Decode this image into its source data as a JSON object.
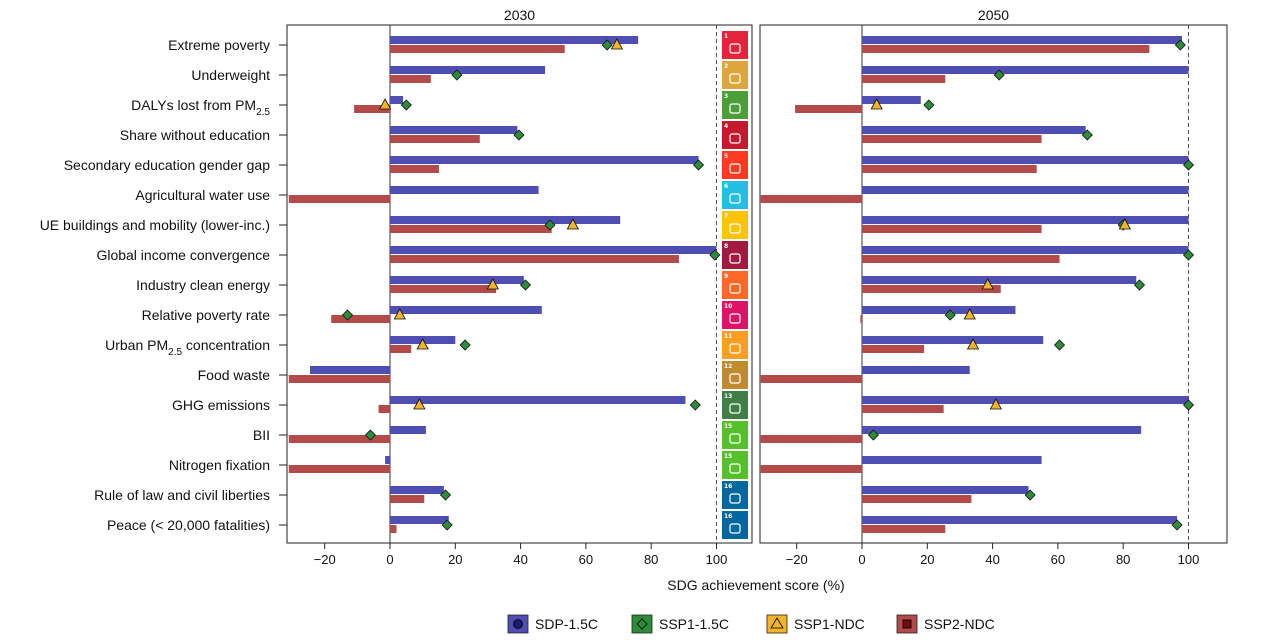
{
  "chart_data": [
    {
      "type": "bar",
      "title": "2030",
      "xlabel": "SDG achievement score (%)",
      "xlim": [
        -31,
        110
      ],
      "xticks": [
        -20,
        0,
        20,
        40,
        60,
        80,
        100
      ],
      "tick_labels": [
        "−20",
        "0",
        "20",
        "40",
        "60",
        "80",
        "100"
      ],
      "categories": [
        "Extreme poverty",
        "Underweight",
        "DALYs lost from PM2.5",
        "Share without education",
        "Secondary education gender gap",
        "Agricultural water use",
        "UE buildings and mobility (lower-inc.)",
        "Global income convergence",
        "Industry clean energy",
        "Relative poverty rate",
        "Urban PM2.5 concentration",
        "Food waste",
        "GHG emissions",
        "BII",
        "Nitrogen fixation",
        "Rule of law and civil liberties",
        "Peace (< 20,000 fatalities)"
      ],
      "series": [
        {
          "name": "SDP-1.5C",
          "kind": "bar",
          "color": "#4f4fb3",
          "values": [
            76,
            47.5,
            4,
            39,
            94.5,
            45.5,
            70.5,
            100,
            41,
            46.5,
            20,
            -24.5,
            90.5,
            11,
            -1.5,
            16.5,
            18
          ]
        },
        {
          "name": "SSP2-NDC",
          "kind": "bar",
          "color": "#b44b4b",
          "values": [
            53.5,
            12.5,
            -11,
            27.5,
            15,
            -31,
            49.5,
            88.5,
            32.5,
            -18,
            6.5,
            -31,
            -3.5,
            -31,
            -31,
            10.5,
            2
          ]
        },
        {
          "name": "SSP1-1.5C",
          "kind": "point",
          "color": "#2e8b3a",
          "values": [
            66.5,
            20.5,
            5,
            39.5,
            94.5,
            null,
            49,
            99.5,
            41.5,
            -13,
            23,
            null,
            93.5,
            -6,
            null,
            17,
            17.5
          ]
        },
        {
          "name": "SSP1-NDC",
          "kind": "point",
          "color": "#f0b429",
          "values": [
            69.5,
            null,
            -1.5,
            null,
            null,
            null,
            56,
            null,
            31.5,
            3,
            10,
            null,
            9,
            null,
            null,
            null,
            null
          ]
        }
      ]
    },
    {
      "type": "bar",
      "title": "2050",
      "xlabel": "SDG achievement score (%)",
      "xlim": [
        -31,
        110
      ],
      "xticks": [
        -20,
        0,
        20,
        40,
        60,
        80,
        100
      ],
      "tick_labels": [
        "−20",
        "0",
        "20",
        "40",
        "60",
        "80",
        "100"
      ],
      "categories": [
        "Extreme poverty",
        "Underweight",
        "DALYs lost from PM2.5",
        "Share without education",
        "Secondary education gender gap",
        "Agricultural water use",
        "UE buildings and mobility (lower-inc.)",
        "Global income convergence",
        "Industry clean energy",
        "Relative poverty rate",
        "Urban PM2.5 concentration",
        "Food waste",
        "GHG emissions",
        "BII",
        "Nitrogen fixation",
        "Rule of law and civil liberties",
        "Peace (< 20,000 fatalities)"
      ],
      "series": [
        {
          "name": "SDP-1.5C",
          "kind": "bar",
          "color": "#4f4fb3",
          "values": [
            98,
            100,
            18,
            68.5,
            100,
            100,
            100,
            100,
            84,
            47,
            55.5,
            33,
            100,
            85.5,
            55,
            51,
            96.5
          ]
        },
        {
          "name": "SSP2-NDC",
          "kind": "bar",
          "color": "#b44b4b",
          "values": [
            88,
            25.5,
            -20.5,
            55,
            53.5,
            -31,
            55,
            60.5,
            42.5,
            -0.5,
            19,
            -31,
            25,
            -31,
            -31,
            33.5,
            25.5
          ]
        },
        {
          "name": "SSP1-1.5C",
          "kind": "point",
          "color": "#2e8b3a",
          "values": [
            97.5,
            42,
            20.5,
            69,
            100,
            null,
            80,
            100,
            85,
            27,
            60.5,
            null,
            100,
            3.5,
            null,
            51.5,
            96.5
          ]
        },
        {
          "name": "SSP1-NDC",
          "kind": "point",
          "color": "#f0b429",
          "values": [
            null,
            null,
            4.5,
            null,
            null,
            null,
            80.5,
            null,
            38.5,
            33,
            34,
            null,
            41,
            null,
            null,
            null,
            null
          ]
        }
      ]
    }
  ],
  "row_labels": [
    {
      "text": "Extreme poverty"
    },
    {
      "text": "Underweight"
    },
    {
      "text": "DALYs lost from PM",
      "sub": "2.5"
    },
    {
      "text": "Share without education"
    },
    {
      "text": "Secondary education gender gap"
    },
    {
      "text": "Agricultural water use"
    },
    {
      "text": "UE buildings and mobility (lower-inc.)"
    },
    {
      "text": "Global income convergence"
    },
    {
      "text": "Industry clean energy"
    },
    {
      "text": "Relative poverty rate"
    },
    {
      "text": "Urban PM",
      "sub": "2.5",
      "suffix": " concentration"
    },
    {
      "text": "Food waste"
    },
    {
      "text": "GHG emissions"
    },
    {
      "text": "BII"
    },
    {
      "text": "Nitrogen fixation"
    },
    {
      "text": "Rule of law and civil liberties"
    },
    {
      "text": "Peace (< 20,000 fatalities)"
    }
  ],
  "sdg_icons": [
    {
      "goal": "1",
      "color": "#e5243b"
    },
    {
      "goal": "2",
      "color": "#dda63a"
    },
    {
      "goal": "3",
      "color": "#4c9f38"
    },
    {
      "goal": "4",
      "color": "#c5192d"
    },
    {
      "goal": "5",
      "color": "#ff3a21"
    },
    {
      "goal": "6",
      "color": "#26bde2"
    },
    {
      "goal": "7",
      "color": "#fcc30b"
    },
    {
      "goal": "8",
      "color": "#a21942"
    },
    {
      "goal": "9",
      "color": "#fd6925"
    },
    {
      "goal": "10",
      "color": "#dd1367"
    },
    {
      "goal": "11",
      "color": "#fd9d24"
    },
    {
      "goal": "12",
      "color": "#bf8b2e"
    },
    {
      "goal": "13",
      "color": "#3f7e44"
    },
    {
      "goal": "15",
      "color": "#56c02b"
    },
    {
      "goal": "15",
      "color": "#56c02b"
    },
    {
      "goal": "16",
      "color": "#00689d"
    },
    {
      "goal": "16",
      "color": "#00689d"
    }
  ],
  "legend": [
    {
      "label": "SDP-1.5C",
      "marker": "circle",
      "fill": "#1a1a6e",
      "box": "#4f4fb3"
    },
    {
      "label": "SSP1-1.5C",
      "marker": "diamond",
      "fill": "#2e8b3a",
      "box": "#2e8b3a"
    },
    {
      "label": "SSP1-NDC",
      "marker": "triangle",
      "fill": "#f0b429",
      "box": "#f0b429"
    },
    {
      "label": "SSP2-NDC",
      "marker": "square",
      "fill": "#6a1010",
      "box": "#b44b4b"
    }
  ]
}
